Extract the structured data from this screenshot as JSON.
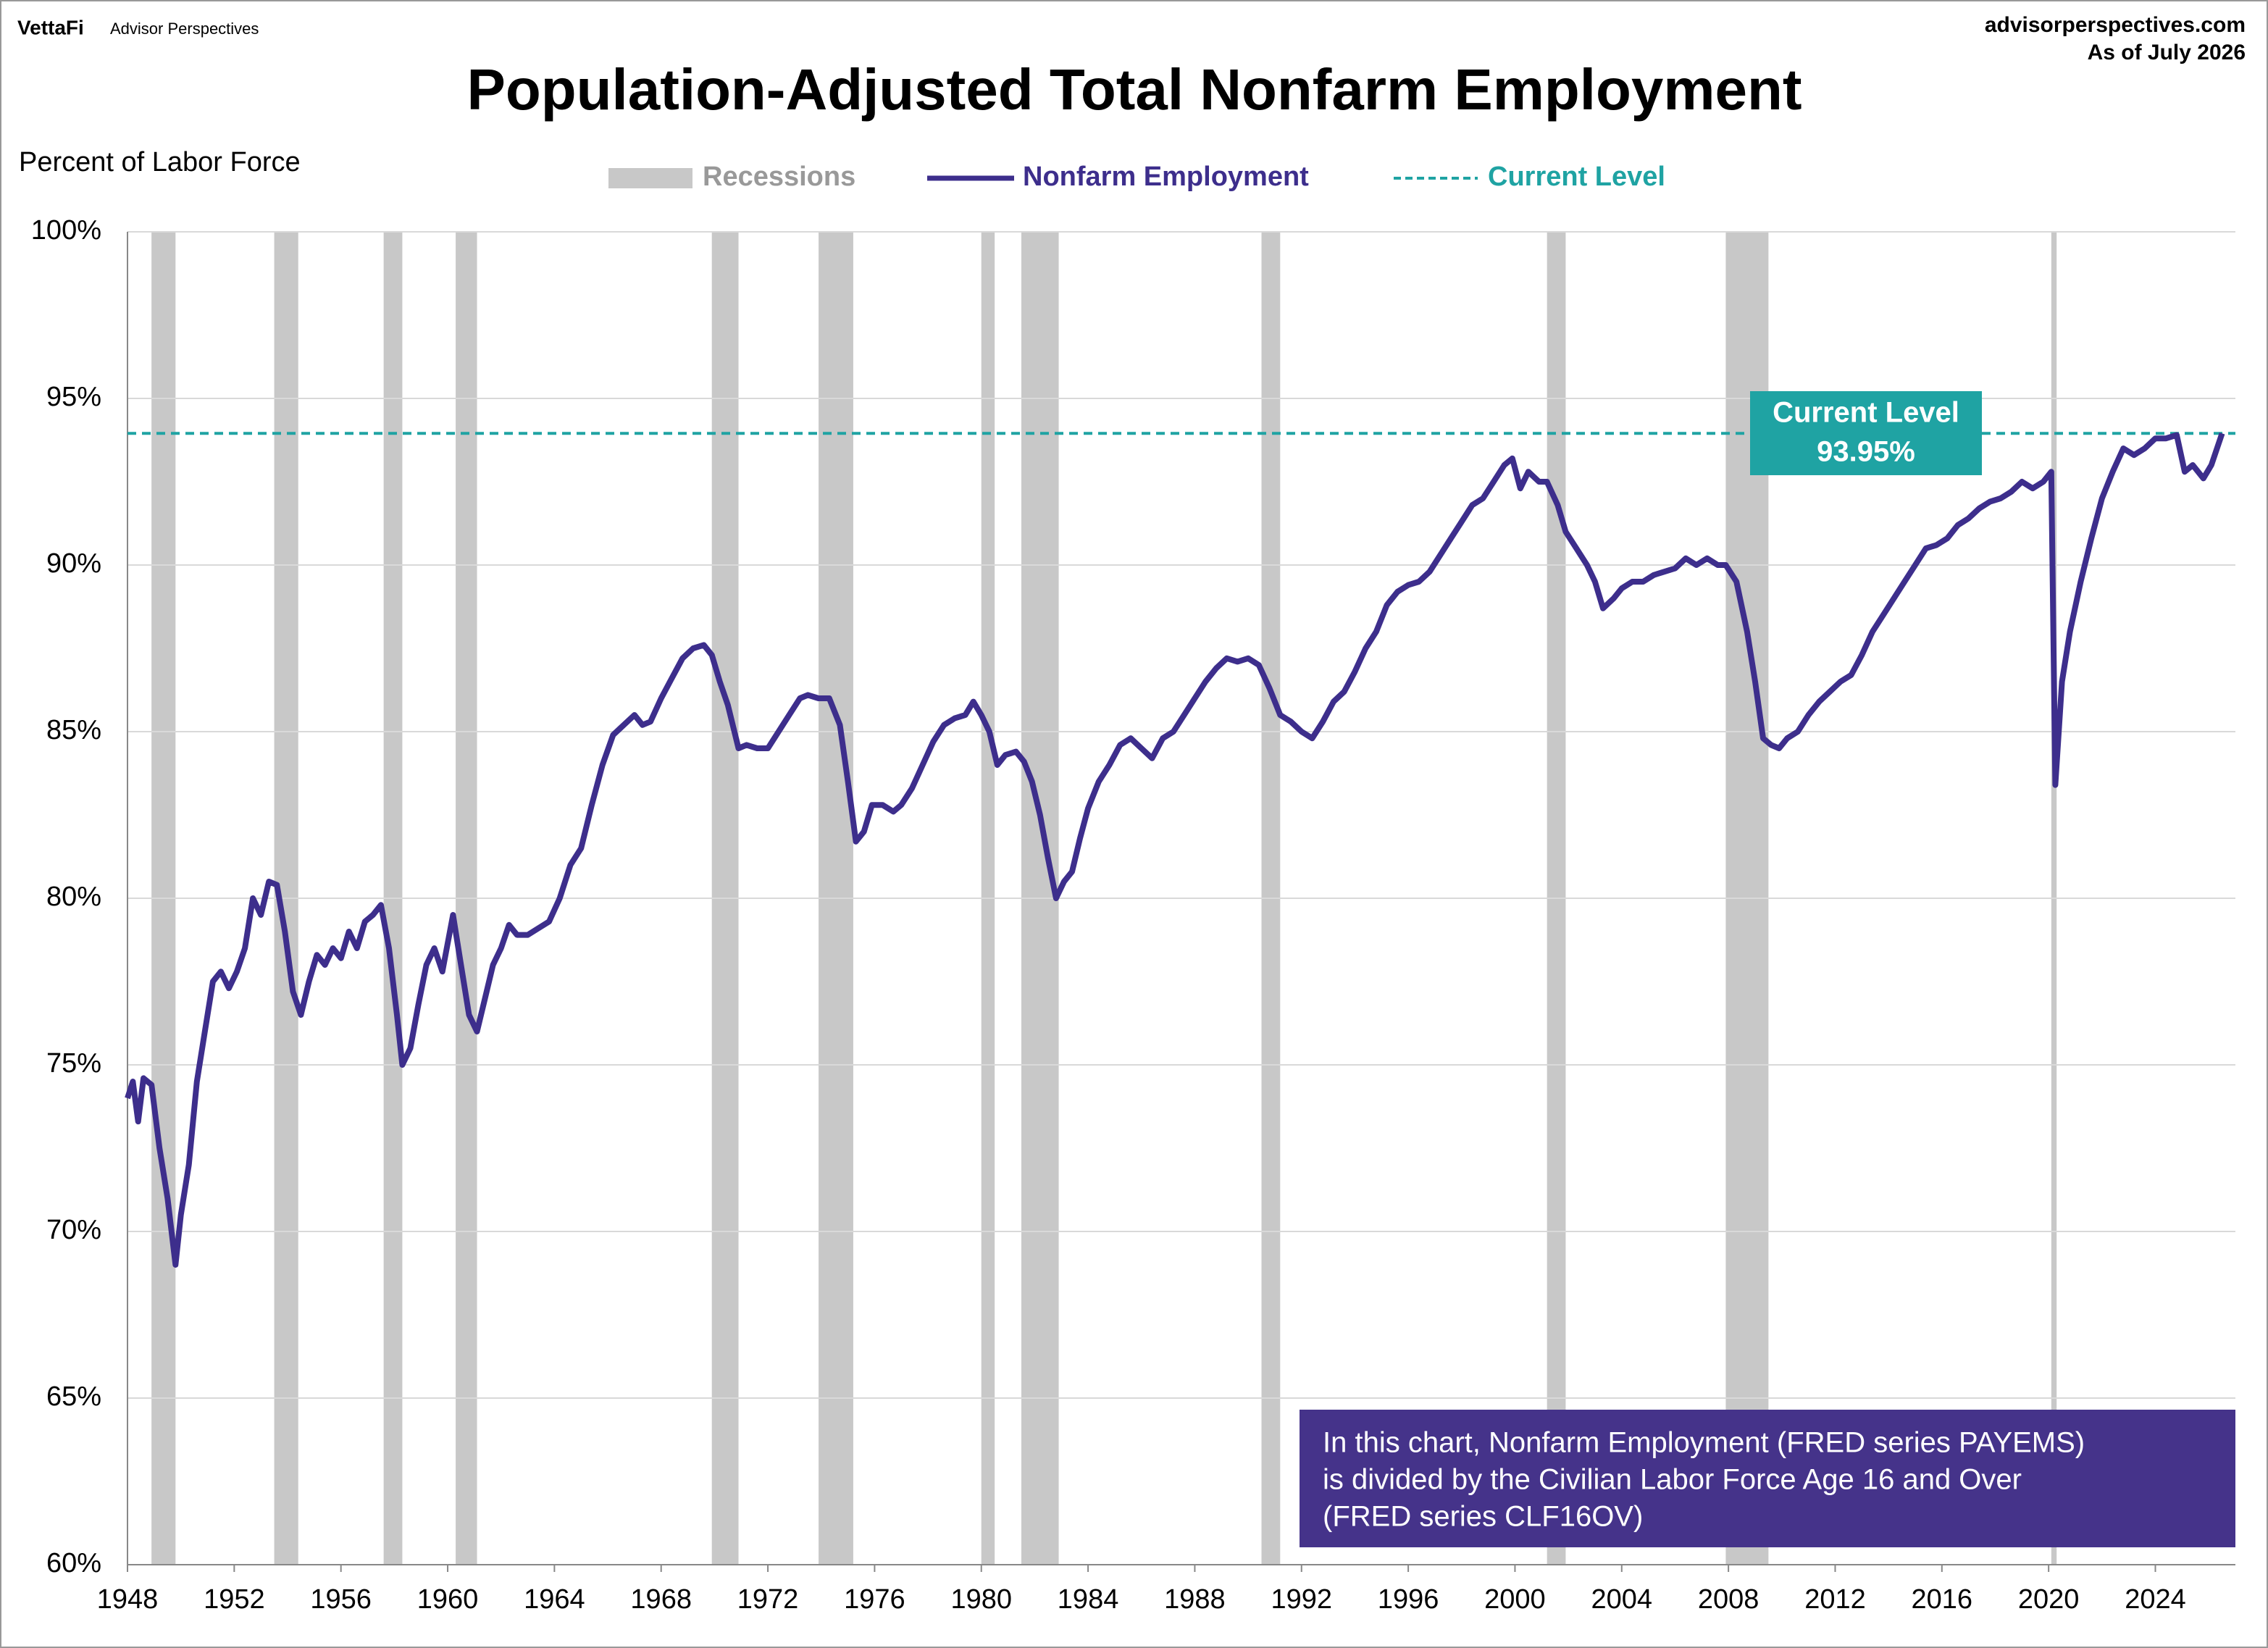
{
  "header": {
    "brand": "VettaFi",
    "sub_brand": "Advisor Perspectives",
    "site": "advisorperspectives.com",
    "as_of": "As of July 2026"
  },
  "chart_data": {
    "type": "line",
    "title": "Population-Adjusted Total Nonfarm Employment",
    "y_label": "Percent of Labor Force",
    "x": [
      1948.0,
      1948.2,
      1948.4,
      1948.6,
      1948.9,
      1949.2,
      1949.5,
      1949.8,
      1950.0,
      1950.3,
      1950.6,
      1950.9,
      1951.2,
      1951.5,
      1951.8,
      1952.1,
      1952.4,
      1952.7,
      1953.0,
      1953.3,
      1953.6,
      1953.9,
      1954.2,
      1954.5,
      1954.8,
      1955.1,
      1955.4,
      1955.7,
      1956.0,
      1956.3,
      1956.6,
      1956.9,
      1957.2,
      1957.5,
      1957.8,
      1958.1,
      1958.3,
      1958.6,
      1958.9,
      1959.2,
      1959.5,
      1959.8,
      1960.2,
      1960.5,
      1960.8,
      1961.1,
      1961.4,
      1961.7,
      1962.0,
      1962.3,
      1962.6,
      1963.0,
      1963.4,
      1963.8,
      1964.2,
      1964.6,
      1965.0,
      1965.4,
      1965.8,
      1966.2,
      1966.6,
      1967.0,
      1967.3,
      1967.6,
      1968.0,
      1968.4,
      1968.8,
      1969.2,
      1969.6,
      1969.9,
      1970.2,
      1970.5,
      1970.9,
      1971.2,
      1971.6,
      1972.0,
      1972.4,
      1972.8,
      1973.2,
      1973.5,
      1973.9,
      1974.3,
      1974.7,
      1975.0,
      1975.3,
      1975.6,
      1975.9,
      1976.3,
      1976.7,
      1977.0,
      1977.4,
      1977.8,
      1978.2,
      1978.6,
      1979.0,
      1979.4,
      1979.7,
      1980.0,
      1980.3,
      1980.6,
      1980.9,
      1981.3,
      1981.6,
      1981.9,
      1982.2,
      1982.5,
      1982.8,
      1983.1,
      1983.4,
      1983.7,
      1984.0,
      1984.4,
      1984.8,
      1985.2,
      1985.6,
      1986.0,
      1986.4,
      1986.8,
      1987.2,
      1987.6,
      1988.0,
      1988.4,
      1988.8,
      1989.2,
      1989.6,
      1990.0,
      1990.4,
      1990.8,
      1991.2,
      1991.6,
      1992.0,
      1992.4,
      1992.8,
      1993.2,
      1993.6,
      1994.0,
      1994.4,
      1994.8,
      1995.2,
      1995.6,
      1996.0,
      1996.4,
      1996.8,
      1997.2,
      1997.6,
      1998.0,
      1998.4,
      1998.8,
      1999.2,
      1999.6,
      1999.9,
      2000.2,
      2000.5,
      2000.9,
      2001.2,
      2001.6,
      2001.9,
      2002.3,
      2002.7,
      2003.0,
      2003.3,
      2003.7,
      2004.0,
      2004.4,
      2004.8,
      2005.2,
      2005.6,
      2006.0,
      2006.4,
      2006.8,
      2007.2,
      2007.6,
      2007.9,
      2008.3,
      2008.7,
      2009.0,
      2009.3,
      2009.6,
      2009.9,
      2010.2,
      2010.6,
      2011.0,
      2011.4,
      2011.8,
      2012.2,
      2012.6,
      2013.0,
      2013.4,
      2013.8,
      2014.2,
      2014.6,
      2015.0,
      2015.4,
      2015.8,
      2016.2,
      2016.6,
      2017.0,
      2017.4,
      2017.8,
      2018.2,
      2018.6,
      2019.0,
      2019.4,
      2019.8,
      2020.1,
      2020.25,
      2020.5,
      2020.8,
      2021.2,
      2021.6,
      2022.0,
      2022.4,
      2022.8,
      2023.2,
      2023.6,
      2024.0,
      2024.4,
      2024.8,
      2025.1,
      2025.4,
      2025.8,
      2026.1,
      2026.5
    ],
    "series": [
      {
        "name": "Nonfarm Employment",
        "color": "#3d2e8c",
        "values": [
          74.0,
          74.5,
          73.3,
          74.6,
          74.4,
          72.5,
          71.0,
          69.0,
          70.5,
          72.0,
          74.5,
          76.0,
          77.5,
          77.8,
          77.3,
          77.8,
          78.5,
          80.0,
          79.5,
          80.5,
          80.4,
          79.0,
          77.2,
          76.5,
          77.5,
          78.3,
          78.0,
          78.5,
          78.2,
          79.0,
          78.5,
          79.3,
          79.5,
          79.8,
          78.5,
          76.5,
          75.0,
          75.5,
          76.8,
          78.0,
          78.5,
          77.8,
          79.5,
          78.0,
          76.5,
          76.0,
          77.0,
          78.0,
          78.5,
          79.2,
          78.9,
          78.9,
          79.1,
          79.3,
          80.0,
          81.0,
          81.5,
          82.8,
          84.0,
          84.9,
          85.2,
          85.5,
          85.2,
          85.3,
          86.0,
          86.6,
          87.2,
          87.5,
          87.6,
          87.3,
          86.5,
          85.8,
          84.5,
          84.6,
          84.5,
          84.5,
          85.0,
          85.5,
          86.0,
          86.1,
          86.0,
          86.0,
          85.2,
          83.5,
          81.7,
          82.0,
          82.8,
          82.8,
          82.6,
          82.8,
          83.3,
          84.0,
          84.7,
          85.2,
          85.4,
          85.5,
          85.9,
          85.5,
          85.0,
          84.0,
          84.3,
          84.4,
          84.1,
          83.5,
          82.5,
          81.2,
          80.0,
          80.5,
          80.8,
          81.8,
          82.7,
          83.5,
          84.0,
          84.6,
          84.8,
          84.5,
          84.2,
          84.8,
          85.0,
          85.5,
          86.0,
          86.5,
          86.9,
          87.2,
          87.1,
          87.2,
          87.0,
          86.3,
          85.5,
          85.3,
          85.0,
          84.8,
          85.3,
          85.9,
          86.2,
          86.8,
          87.5,
          88.0,
          88.8,
          89.2,
          89.4,
          89.5,
          89.8,
          90.3,
          90.8,
          91.3,
          91.8,
          92.0,
          92.5,
          93.0,
          93.2,
          92.3,
          92.8,
          92.5,
          92.5,
          91.8,
          91.0,
          90.5,
          90.0,
          89.5,
          88.7,
          89.0,
          89.3,
          89.5,
          89.5,
          89.7,
          89.8,
          89.9,
          90.2,
          90.0,
          90.2,
          90.0,
          90.0,
          89.5,
          88.0,
          86.5,
          84.8,
          84.6,
          84.5,
          84.8,
          85.0,
          85.5,
          85.9,
          86.2,
          86.5,
          86.7,
          87.3,
          88.0,
          88.5,
          89.0,
          89.5,
          90.0,
          90.5,
          90.6,
          90.8,
          91.2,
          91.4,
          91.7,
          91.9,
          92.0,
          92.2,
          92.5,
          92.3,
          92.5,
          92.8,
          83.4,
          86.5,
          88.0,
          89.5,
          90.8,
          92.0,
          92.8,
          93.5,
          93.3,
          93.5,
          93.8,
          93.8,
          93.9,
          92.8,
          93.0,
          92.6,
          93.0,
          93.95
        ]
      }
    ],
    "recessions": {
      "name": "Recessions",
      "color": "#c8c8c8",
      "legend_text_color": "#999999",
      "periods": [
        [
          1948.9,
          1949.8
        ],
        [
          1953.5,
          1954.4
        ],
        [
          1957.6,
          1958.3
        ],
        [
          1960.3,
          1961.1
        ],
        [
          1969.9,
          1970.9
        ],
        [
          1973.9,
          1975.2
        ],
        [
          1980.0,
          1980.5
        ],
        [
          1981.5,
          1982.9
        ],
        [
          1990.5,
          1991.2
        ],
        [
          2001.2,
          2001.9
        ],
        [
          2007.9,
          2009.5
        ],
        [
          2020.1,
          2020.3
        ]
      ]
    },
    "reference_line": {
      "name": "Current Level",
      "color": "#1fa3a3",
      "value": 93.95,
      "value_label": "93.95%"
    },
    "note": [
      "In this chart, Nonfarm Employment (FRED series PAYEMS)",
      "is divided by the Civilian Labor Force Age 16 and Over",
      "(FRED series CLF16OV)"
    ],
    "note_color": "#45338a",
    "xlim": [
      1948,
      2027
    ],
    "xticks": [
      1948,
      1952,
      1956,
      1960,
      1964,
      1968,
      1972,
      1976,
      1980,
      1984,
      1988,
      1992,
      1996,
      2000,
      2004,
      2008,
      2012,
      2016,
      2020,
      2024
    ],
    "ylim": [
      60,
      100
    ],
    "yticks": [
      {
        "value": 60,
        "label": "60%"
      },
      {
        "value": 65,
        "label": "65%"
      },
      {
        "value": 70,
        "label": "70%"
      },
      {
        "value": 75,
        "label": "75%"
      },
      {
        "value": 80,
        "label": "80%"
      },
      {
        "value": 85,
        "label": "85%"
      },
      {
        "value": 90,
        "label": "90%"
      },
      {
        "value": 95,
        "label": "95%"
      },
      {
        "value": 100,
        "label": "100%"
      }
    ],
    "grid": true
  }
}
